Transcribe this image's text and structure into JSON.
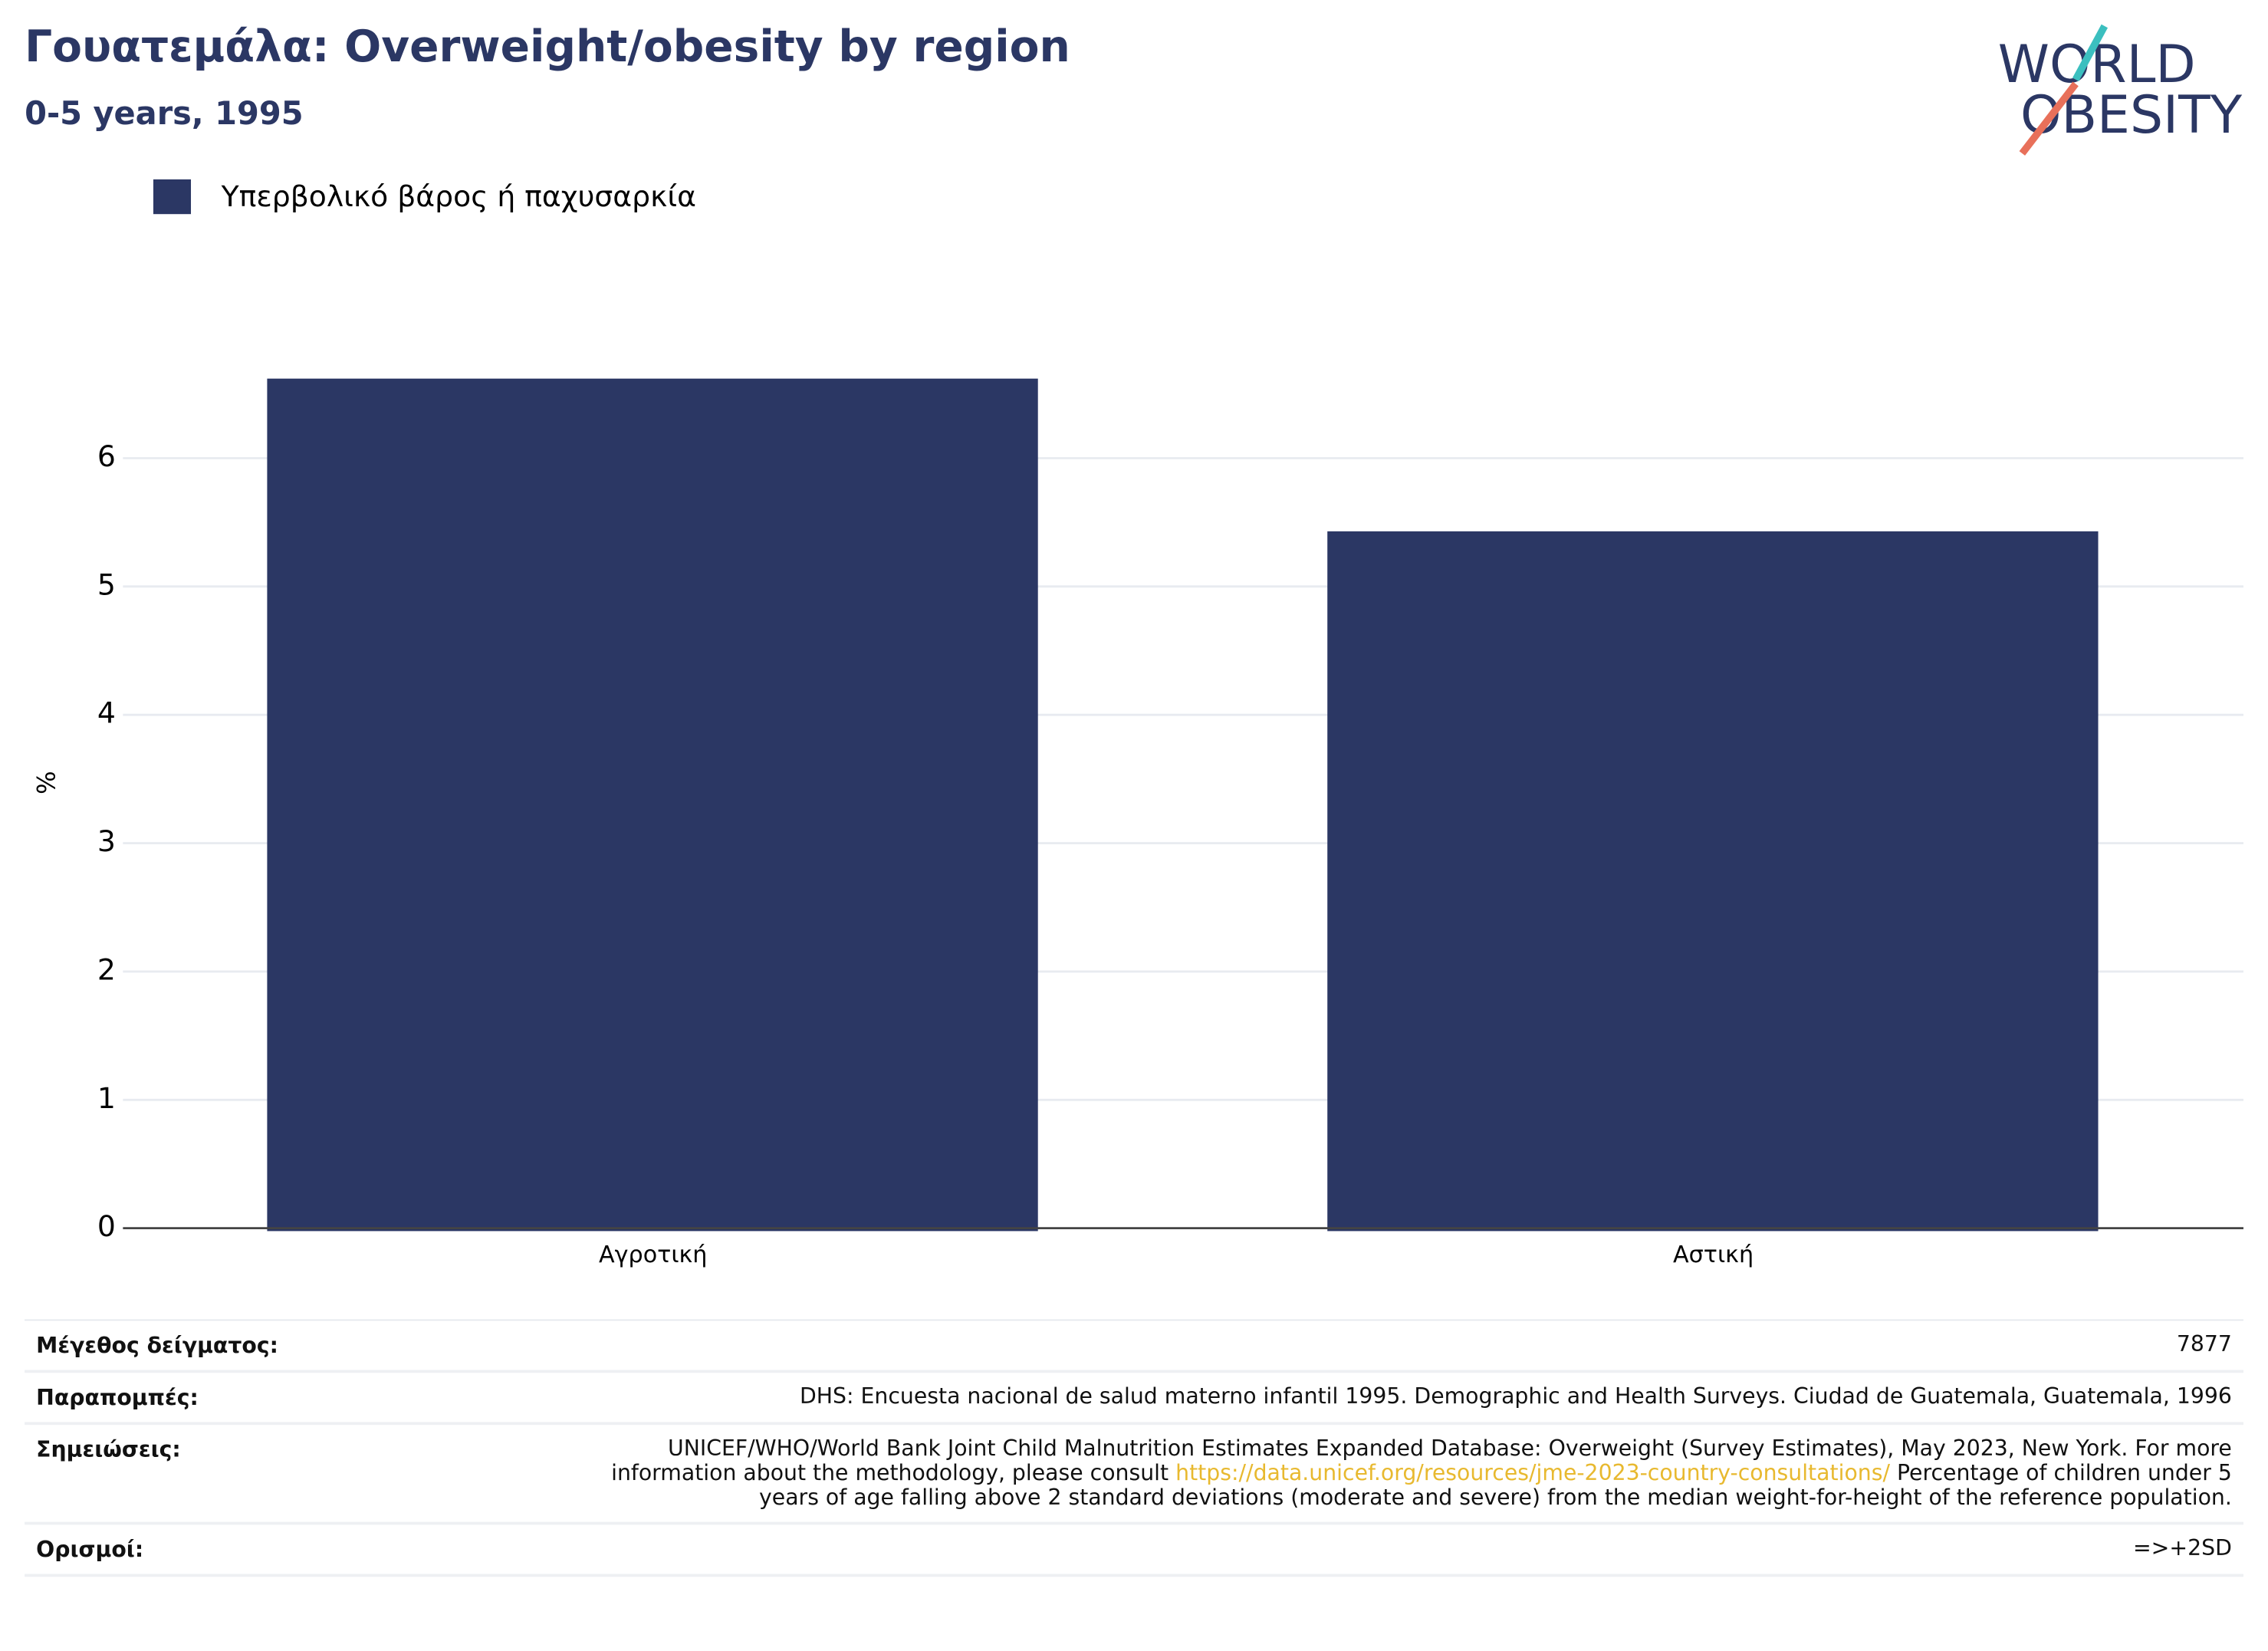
{
  "chart_data": {
    "type": "bar",
    "title": "Γουατεμάλα: Overweight/obesity by region",
    "subtitle": "0-5 years, 1995",
    "y_label": "%",
    "categories": [
      "Αγροτική",
      "Αστική"
    ],
    "series": [
      {
        "name": "Υπερβολικό βάρος ή παχυσαρκία",
        "color": "#2b3764",
        "values": [
          6.62,
          5.43
        ]
      }
    ],
    "ylim": [
      0,
      7
    ],
    "yticks": [
      0,
      1,
      2,
      3,
      4,
      5,
      6
    ],
    "grid": true,
    "legend": "top-left"
  },
  "logo": {
    "line1": "WORLD",
    "line2": "OBESITY"
  },
  "footer": {
    "sample_size": {
      "label": "Μέγεθος δείγματος:",
      "value": "7877"
    },
    "references": {
      "label": "Παραπομπές:",
      "value": "DHS: Encuesta nacional de salud materno infantil 1995. Demographic and Health Surveys. Ciudad de Guatemala, Guatemala, 1996"
    },
    "notes": {
      "label": "Σημειώσεις:",
      "text_before": "UNICEF/WHO/World Bank Joint Child Malnutrition Estimates Expanded Database: Overweight (Survey Estimates), May 2023, New York. For more information about the methodology, please consult",
      "link": "https://data.unicef.org/resources/jme-2023-country-consultations/",
      "text_after": "Percentage of children under 5 years of age falling above 2 standard deviations (moderate and severe) from the median weight-for-height of the reference population."
    },
    "definitions": {
      "label": "Ορισμοί:",
      "value": "=>+2SD"
    }
  }
}
